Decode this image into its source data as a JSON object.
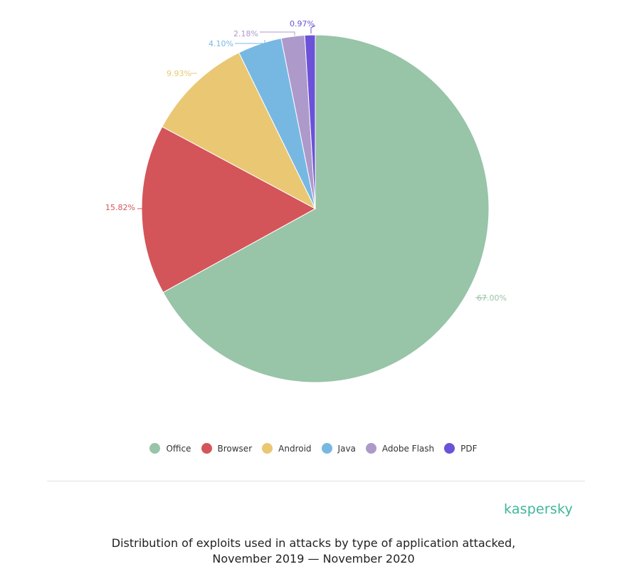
{
  "chart_data": {
    "type": "pie",
    "categories": [
      "Office",
      "Browser",
      "Android",
      "Java",
      "Adobe Flash",
      "PDF"
    ],
    "values": [
      67.0,
      15.82,
      9.93,
      4.1,
      2.18,
      0.97
    ],
    "labels": [
      "67.00%",
      "15.82%",
      "9.93%",
      "4.10%",
      "2.18%",
      "0.97%"
    ],
    "colors": [
      "#98c4a8",
      "#d45559",
      "#eac773",
      "#77b8e3",
      "#ae99cb",
      "#6b52d9"
    ],
    "legend_position": "bottom",
    "start": "top",
    "direction": "clockwise"
  },
  "brand": "kaspersky",
  "caption": {
    "line1": "Distribution of exploits used in attacks by type of application attacked,",
    "line2": "November 2019 — November 2020"
  }
}
